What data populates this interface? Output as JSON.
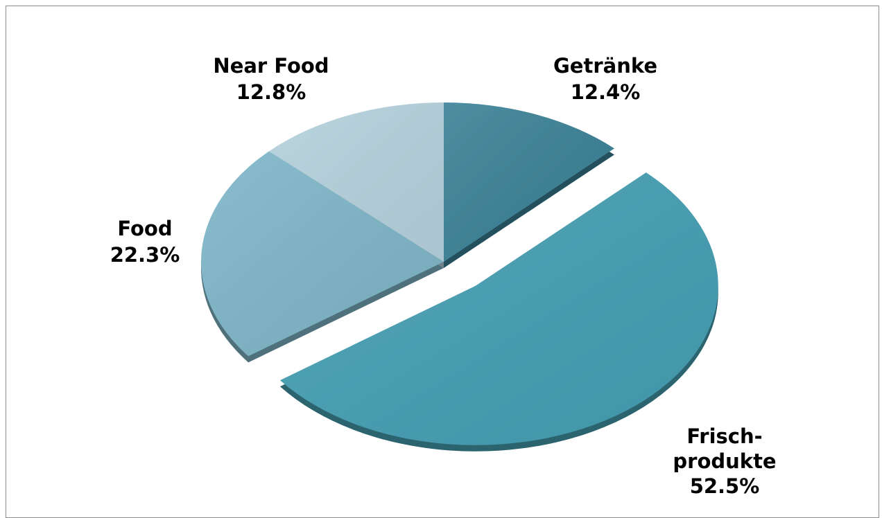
{
  "chart_data": {
    "type": "pie",
    "title": "",
    "slices": [
      {
        "label_lines": [
          "Getränke"
        ],
        "percent_text": "12.4%",
        "value": 12.4,
        "color": "#3a8196",
        "exploded": false
      },
      {
        "label_lines": [
          "Frisch-",
          "produkte"
        ],
        "percent_text": "52.5%",
        "value": 52.5,
        "color": "#459fb3",
        "exploded": true
      },
      {
        "label_lines": [
          "Food"
        ],
        "percent_text": "22.3%",
        "value": 22.3,
        "color": "#7eb6c8",
        "exploded": false
      },
      {
        "label_lines": [
          "Near Food"
        ],
        "percent_text": "12.8%",
        "value": 12.8,
        "color": "#b5d2dd",
        "exploded": false
      }
    ]
  }
}
